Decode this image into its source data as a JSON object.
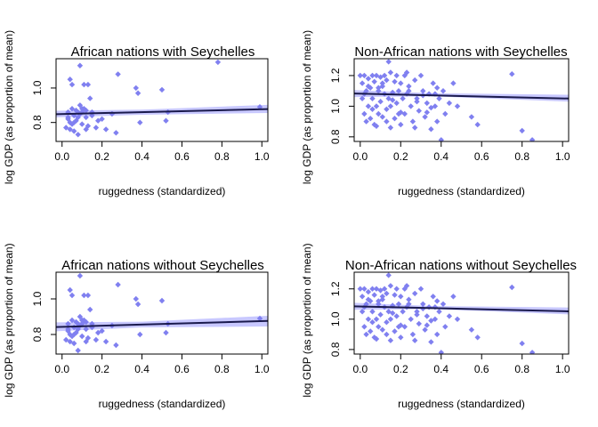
{
  "colors": {
    "point": "#8080f0",
    "band": "#c8c8ff",
    "line": "#1a1a4d"
  },
  "chart_data": [
    {
      "type": "scatter",
      "title": "African nations with Seychelles",
      "xlabel": "ruggedness (standardized)",
      "ylabel": "log GDP (as proportion of mean)",
      "xlim": [
        -0.03,
        1.03
      ],
      "ylim": [
        0.69,
        1.17
      ],
      "xticks": [
        0.0,
        0.2,
        0.4,
        0.6,
        0.8,
        1.0
      ],
      "xtick_labels": [
        "0.0",
        "0.2",
        "0.4",
        "0.6",
        "0.8",
        "1.0"
      ],
      "yticks": [
        0.8,
        1.0
      ],
      "ytick_labels": [
        "0.8",
        "1.0"
      ],
      "fit_line": {
        "x": [
          -0.03,
          1.03
        ],
        "y": [
          0.848,
          0.878
        ]
      },
      "band": {
        "x": [
          -0.03,
          0.4,
          1.03
        ],
        "lower": [
          0.83,
          0.845,
          0.855
        ],
        "upper": [
          0.868,
          0.875,
          0.902
        ]
      },
      "points": {
        "x": [
          0.02,
          0.03,
          0.03,
          0.04,
          0.04,
          0.05,
          0.05,
          0.06,
          0.06,
          0.07,
          0.08,
          0.08,
          0.09,
          0.09,
          0.1,
          0.1,
          0.11,
          0.12,
          0.12,
          0.13,
          0.14,
          0.15,
          0.17,
          0.18,
          0.2,
          0.22,
          0.25,
          0.27,
          0.28,
          0.37,
          0.38,
          0.39,
          0.5,
          0.52,
          0.53,
          0.78,
          0.99,
          0.03,
          0.05,
          0.07,
          0.09,
          0.11,
          0.13,
          0.15,
          0.04,
          0.06,
          0.08,
          0.1,
          0.12
        ],
        "y": [
          0.77,
          0.82,
          0.86,
          1.05,
          0.8,
          1.02,
          0.88,
          0.75,
          0.84,
          0.87,
          0.73,
          0.83,
          1.13,
          0.9,
          0.86,
          0.79,
          1.02,
          0.76,
          0.87,
          1.02,
          0.94,
          0.86,
          0.77,
          0.81,
          0.82,
          0.76,
          0.85,
          0.74,
          1.08,
          1.0,
          0.97,
          0.8,
          0.99,
          0.81,
          0.86,
          1.15,
          0.89,
          0.83,
          0.79,
          0.81,
          0.85,
          0.88,
          0.78,
          0.84,
          0.76,
          0.8,
          0.86,
          0.88,
          0.83
        ]
      }
    },
    {
      "type": "scatter",
      "title": "Non-African nations with Seychelles",
      "xlabel": "ruggedness (standardized)",
      "ylabel": "log GDP (as proportion of mean)",
      "xlim": [
        -0.03,
        1.03
      ],
      "ylim": [
        0.77,
        1.31
      ],
      "xticks": [
        0.0,
        0.2,
        0.4,
        0.6,
        0.8,
        1.0
      ],
      "xtick_labels": [
        "0.0",
        "0.2",
        "0.4",
        "0.6",
        "0.8",
        "1.0"
      ],
      "yticks": [
        0.8,
        1.0,
        1.2
      ],
      "ytick_labels": [
        "0.8",
        "1.0",
        "1.2"
      ],
      "fit_line": {
        "x": [
          -0.03,
          1.03
        ],
        "y": [
          1.083,
          1.05
        ]
      },
      "band": {
        "x": [
          -0.03,
          0.35,
          1.03
        ],
        "lower": [
          1.06,
          1.065,
          1.03
        ],
        "upper": [
          1.105,
          1.085,
          1.075
        ]
      },
      "points": {
        "x": [
          0.0,
          0.01,
          0.01,
          0.02,
          0.02,
          0.03,
          0.03,
          0.04,
          0.04,
          0.05,
          0.05,
          0.06,
          0.06,
          0.07,
          0.07,
          0.08,
          0.08,
          0.09,
          0.09,
          0.1,
          0.1,
          0.11,
          0.11,
          0.12,
          0.12,
          0.13,
          0.13,
          0.14,
          0.14,
          0.15,
          0.15,
          0.16,
          0.17,
          0.17,
          0.18,
          0.18,
          0.19,
          0.2,
          0.2,
          0.21,
          0.22,
          0.22,
          0.23,
          0.24,
          0.25,
          0.26,
          0.27,
          0.28,
          0.29,
          0.3,
          0.31,
          0.32,
          0.33,
          0.34,
          0.35,
          0.36,
          0.37,
          0.38,
          0.39,
          0.4,
          0.41,
          0.42,
          0.44,
          0.46,
          0.48,
          0.55,
          0.58,
          0.75,
          0.8,
          0.85,
          0.02,
          0.06,
          0.09,
          0.13,
          0.16,
          0.2,
          0.24,
          0.27,
          0.31,
          0.35,
          0.38,
          0.04,
          0.08,
          0.11,
          0.15,
          0.19,
          0.23,
          0.28,
          0.33,
          0.37
        ],
        "y": [
          1.2,
          1.15,
          1.05,
          0.95,
          1.2,
          1.1,
          0.9,
          1.18,
          1.0,
          1.12,
          0.92,
          1.2,
          1.05,
          1.16,
          0.88,
          1.2,
          1.0,
          1.1,
          0.95,
          1.19,
          1.03,
          1.13,
          0.93,
          1.2,
          1.08,
          1.17,
          0.98,
          1.29,
          1.05,
          1.22,
          0.86,
          1.09,
          1.16,
          0.92,
          1.2,
          1.02,
          1.1,
          1.15,
          0.88,
          1.05,
          1.2,
          0.95,
          1.08,
          1.13,
          1.0,
          0.9,
          1.17,
          1.05,
          0.97,
          1.2,
          1.1,
          0.93,
          1.02,
          1.08,
          0.85,
          1.15,
          1.0,
          0.9,
          1.05,
          0.78,
          1.1,
          0.95,
          1.02,
          1.15,
          1.0,
          0.93,
          0.88,
          1.21,
          0.84,
          0.78,
          1.08,
          0.98,
          1.12,
          0.9,
          1.04,
          0.96,
          1.1,
          0.86,
          1.07,
          0.99,
          1.12,
          1.13,
          0.87,
          1.15,
          1.0,
          0.95,
          1.22,
          1.03,
          0.96,
          1.08
        ]
      }
    },
    {
      "type": "scatter",
      "title": "African nations without Seychelles",
      "xlabel": "ruggedness (standardized)",
      "ylabel": "log GDP (as proportion of mean)",
      "xlim": [
        -0.03,
        1.03
      ],
      "ylim": [
        0.69,
        1.15
      ],
      "xticks": [
        0.0,
        0.2,
        0.4,
        0.6,
        0.8,
        1.0
      ],
      "xtick_labels": [
        "0.0",
        "0.2",
        "0.4",
        "0.6",
        "0.8",
        "1.0"
      ],
      "yticks": [
        0.8,
        1.0
      ],
      "ytick_labels": [
        "0.8",
        "1.0"
      ],
      "fit_line": {
        "x": [
          -0.03,
          1.03
        ],
        "y": [
          0.842,
          0.876
        ]
      },
      "band": {
        "x": [
          -0.03,
          0.4,
          1.03
        ],
        "lower": [
          0.818,
          0.84,
          0.845
        ],
        "upper": [
          0.868,
          0.872,
          0.905
        ]
      },
      "points": {
        "x": [
          0.02,
          0.03,
          0.03,
          0.04,
          0.04,
          0.05,
          0.05,
          0.06,
          0.06,
          0.07,
          0.08,
          0.08,
          0.09,
          0.09,
          0.1,
          0.1,
          0.11,
          0.12,
          0.12,
          0.13,
          0.14,
          0.15,
          0.17,
          0.18,
          0.2,
          0.22,
          0.25,
          0.27,
          0.28,
          0.37,
          0.38,
          0.39,
          0.5,
          0.52,
          0.53,
          0.99,
          0.03,
          0.05,
          0.07,
          0.09,
          0.11,
          0.13,
          0.15,
          0.04,
          0.06,
          0.08,
          0.1,
          0.12
        ],
        "y": [
          0.77,
          0.82,
          0.86,
          1.05,
          0.8,
          1.02,
          0.88,
          0.75,
          0.84,
          0.87,
          0.71,
          0.83,
          1.13,
          0.9,
          0.86,
          0.79,
          1.02,
          0.76,
          0.87,
          1.02,
          0.94,
          0.86,
          0.77,
          0.81,
          0.82,
          0.76,
          0.85,
          0.74,
          1.08,
          1.0,
          0.97,
          0.8,
          0.99,
          0.81,
          0.86,
          0.89,
          0.83,
          0.79,
          0.81,
          0.85,
          0.88,
          0.78,
          0.84,
          0.76,
          0.8,
          0.86,
          0.88,
          0.83
        ]
      }
    },
    {
      "type": "scatter",
      "title": "Non-African nations without Seychelles",
      "xlabel": "ruggedness (standardized)",
      "ylabel": "log GDP (as proportion of mean)",
      "xlim": [
        -0.03,
        1.03
      ],
      "ylim": [
        0.77,
        1.31
      ],
      "xticks": [
        0.0,
        0.2,
        0.4,
        0.6,
        0.8,
        1.0
      ],
      "xtick_labels": [
        "0.0",
        "0.2",
        "0.4",
        "0.6",
        "0.8",
        "1.0"
      ],
      "yticks": [
        0.8,
        1.0,
        1.2
      ],
      "ytick_labels": [
        "0.8",
        "1.0",
        "1.2"
      ],
      "fit_line": {
        "x": [
          -0.03,
          1.03
        ],
        "y": [
          1.085,
          1.052
        ]
      },
      "band": {
        "x": [
          -0.03,
          0.35,
          1.03
        ],
        "lower": [
          1.062,
          1.067,
          1.032
        ],
        "upper": [
          1.108,
          1.087,
          1.077
        ]
      },
      "points": {
        "x": [
          0.0,
          0.01,
          0.01,
          0.02,
          0.02,
          0.03,
          0.03,
          0.04,
          0.04,
          0.05,
          0.05,
          0.06,
          0.06,
          0.07,
          0.07,
          0.08,
          0.08,
          0.09,
          0.09,
          0.1,
          0.1,
          0.11,
          0.11,
          0.12,
          0.12,
          0.13,
          0.13,
          0.14,
          0.14,
          0.15,
          0.15,
          0.16,
          0.17,
          0.17,
          0.18,
          0.18,
          0.19,
          0.2,
          0.2,
          0.21,
          0.22,
          0.22,
          0.23,
          0.24,
          0.25,
          0.26,
          0.27,
          0.28,
          0.29,
          0.3,
          0.31,
          0.32,
          0.33,
          0.34,
          0.35,
          0.36,
          0.37,
          0.38,
          0.39,
          0.4,
          0.41,
          0.42,
          0.44,
          0.46,
          0.48,
          0.55,
          0.58,
          0.75,
          0.8,
          0.85,
          0.02,
          0.06,
          0.09,
          0.13,
          0.16,
          0.2,
          0.24,
          0.27,
          0.31,
          0.35,
          0.38,
          0.04,
          0.08,
          0.11,
          0.15,
          0.19,
          0.23,
          0.28,
          0.33,
          0.37
        ],
        "y": [
          1.2,
          1.15,
          1.05,
          0.95,
          1.2,
          1.1,
          0.9,
          1.18,
          1.0,
          1.12,
          0.92,
          1.2,
          1.05,
          1.16,
          0.88,
          1.2,
          1.0,
          1.1,
          0.95,
          1.19,
          1.03,
          1.13,
          0.93,
          1.2,
          1.08,
          1.17,
          0.98,
          1.29,
          1.05,
          1.22,
          0.86,
          1.09,
          1.16,
          0.92,
          1.2,
          1.02,
          1.1,
          1.15,
          0.88,
          1.05,
          1.2,
          0.95,
          1.08,
          1.13,
          1.0,
          0.9,
          1.17,
          1.05,
          0.97,
          1.2,
          1.1,
          0.93,
          1.02,
          1.08,
          0.85,
          1.15,
          1.0,
          0.9,
          1.05,
          0.78,
          1.1,
          0.95,
          1.02,
          1.15,
          1.0,
          0.93,
          0.88,
          1.21,
          0.84,
          0.78,
          1.08,
          0.98,
          1.12,
          0.9,
          1.04,
          0.96,
          1.1,
          0.86,
          1.07,
          0.99,
          1.12,
          1.13,
          0.87,
          1.15,
          1.0,
          0.95,
          1.22,
          1.03,
          0.96,
          1.08
        ]
      }
    }
  ]
}
